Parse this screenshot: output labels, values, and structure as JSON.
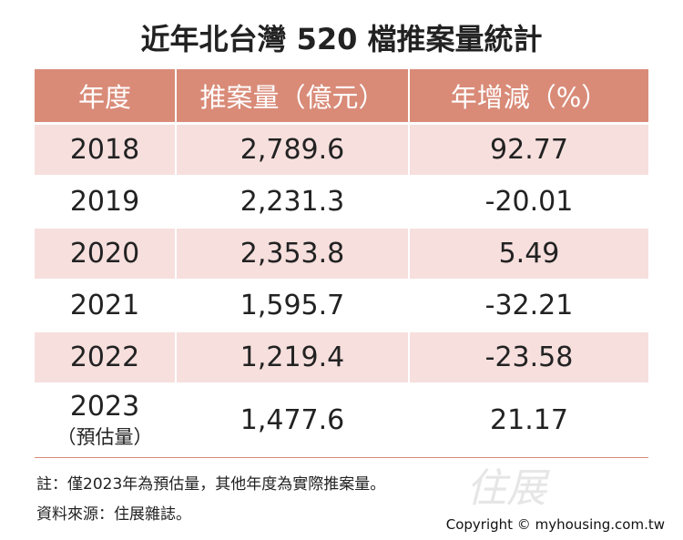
{
  "title": "近年北台灣 520 檔推案量統計",
  "table": {
    "header": [
      "年度",
      "推案量（億元）",
      "年增減（%）"
    ],
    "rows": [
      {
        "year": "2018",
        "volume": "2,789.6",
        "change": "92.77"
      },
      {
        "year": "2019",
        "volume": "2,231.3",
        "change": "-20.01"
      },
      {
        "year": "2020",
        "volume": "2,353.8",
        "change": "5.49"
      },
      {
        "year": "2021",
        "volume": "1,595.7",
        "change": "-32.21"
      },
      {
        "year": "2022",
        "volume": "1,219.4",
        "change": "-23.58"
      },
      {
        "year": "2023",
        "year_note": "（預估量）",
        "volume": "1,477.6",
        "change": "21.17"
      }
    ]
  },
  "notes": [
    "註：僅2023年為預估量，其他年度為實際推案量。",
    "資料來源：住展雜誌。"
  ],
  "watermark": "住展",
  "copyright": "Copyright © myhousing.com.tw"
}
